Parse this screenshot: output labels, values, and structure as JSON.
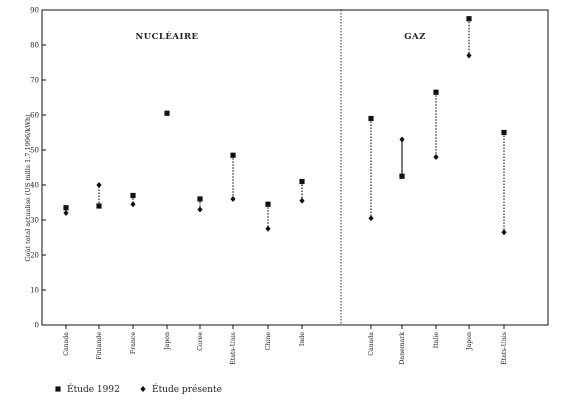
{
  "chart_data": {
    "type": "scatter",
    "ylabel": "Coût total actualisé (US mills 1.7.1996/kWh)",
    "ylim": [
      0,
      90
    ],
    "yticks": [
      0,
      10,
      20,
      30,
      40,
      50,
      60,
      70,
      80,
      90
    ],
    "grid": false,
    "legend": {
      "placement": "bottom-left",
      "items": [
        {
          "marker": "square",
          "label": "Étude 1992"
        },
        {
          "marker": "diamond",
          "label": "Étude présente"
        }
      ]
    },
    "sections": [
      {
        "title": "NUCLÉAIRE",
        "categories": [
          "Canada",
          "Finlande",
          "France",
          "Japon",
          "Corée",
          "États-Unis",
          "Chine",
          "Inde"
        ],
        "etude_1992": [
          33.5,
          34,
          37,
          60.5,
          36,
          48.5,
          34.5,
          41
        ],
        "etude_presente": [
          32,
          40,
          34.5,
          null,
          33,
          36,
          27.5,
          35.5
        ]
      },
      {
        "title": "GAZ",
        "categories": [
          "Canada",
          "Danemark",
          "Italie",
          "Japon",
          "États-Unis"
        ],
        "etude_1992": [
          59,
          42.5,
          66.5,
          87.5,
          55
        ],
        "etude_presente": [
          30.5,
          53,
          48,
          77,
          26.5
        ]
      }
    ]
  }
}
